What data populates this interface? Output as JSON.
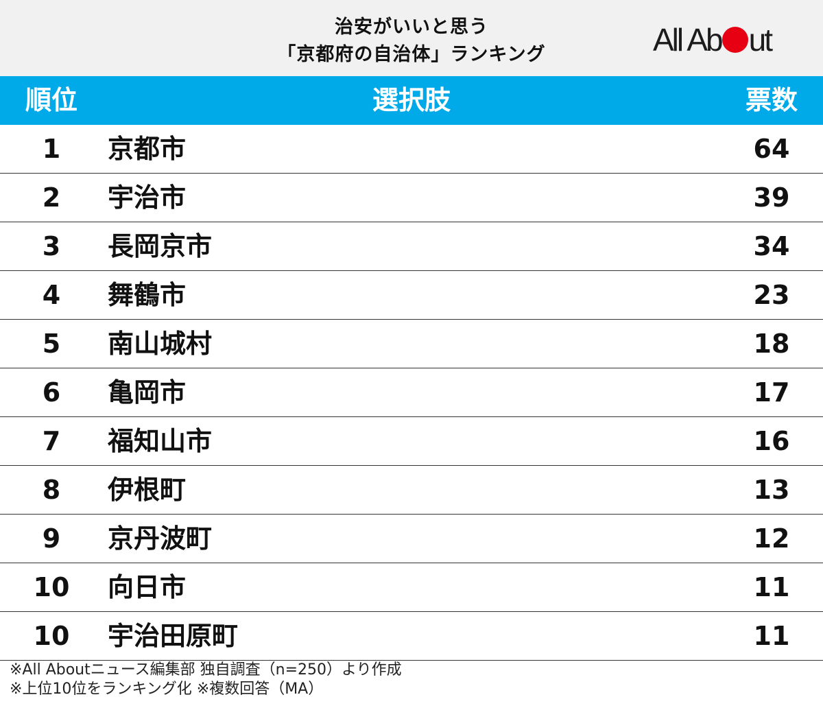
{
  "header": {
    "title_line1": "治安がいいと思う",
    "title_line2": "「京都府の自治体」ランキング",
    "logo": "All About"
  },
  "chart_data": {
    "type": "table",
    "columns": [
      "順位",
      "選択肢",
      "票数"
    ],
    "rows": [
      {
        "rank": "1",
        "name": "京都市",
        "votes": "64"
      },
      {
        "rank": "2",
        "name": "宇治市",
        "votes": "39"
      },
      {
        "rank": "3",
        "name": "長岡京市",
        "votes": "34"
      },
      {
        "rank": "4",
        "name": "舞鶴市",
        "votes": "23"
      },
      {
        "rank": "5",
        "name": "南山城村",
        "votes": "18"
      },
      {
        "rank": "6",
        "name": "亀岡市",
        "votes": "17"
      },
      {
        "rank": "7",
        "name": "福知山市",
        "votes": "16"
      },
      {
        "rank": "8",
        "name": "伊根町",
        "votes": "13"
      },
      {
        "rank": "9",
        "name": "京丹波町",
        "votes": "12"
      },
      {
        "rank": "10",
        "name": "向日市",
        "votes": "11"
      },
      {
        "rank": "10",
        "name": "宇治田原町",
        "votes": "11"
      }
    ]
  },
  "notes": {
    "line1": "※All Aboutニュース編集部 独自調査（n=250）より作成",
    "line2": "※上位10位をランキング化 ※複数回答（MA）"
  },
  "colors": {
    "header_bg": "#00a9e8",
    "title_bg": "#f1f1f1",
    "logo_accent": "#e60012"
  }
}
